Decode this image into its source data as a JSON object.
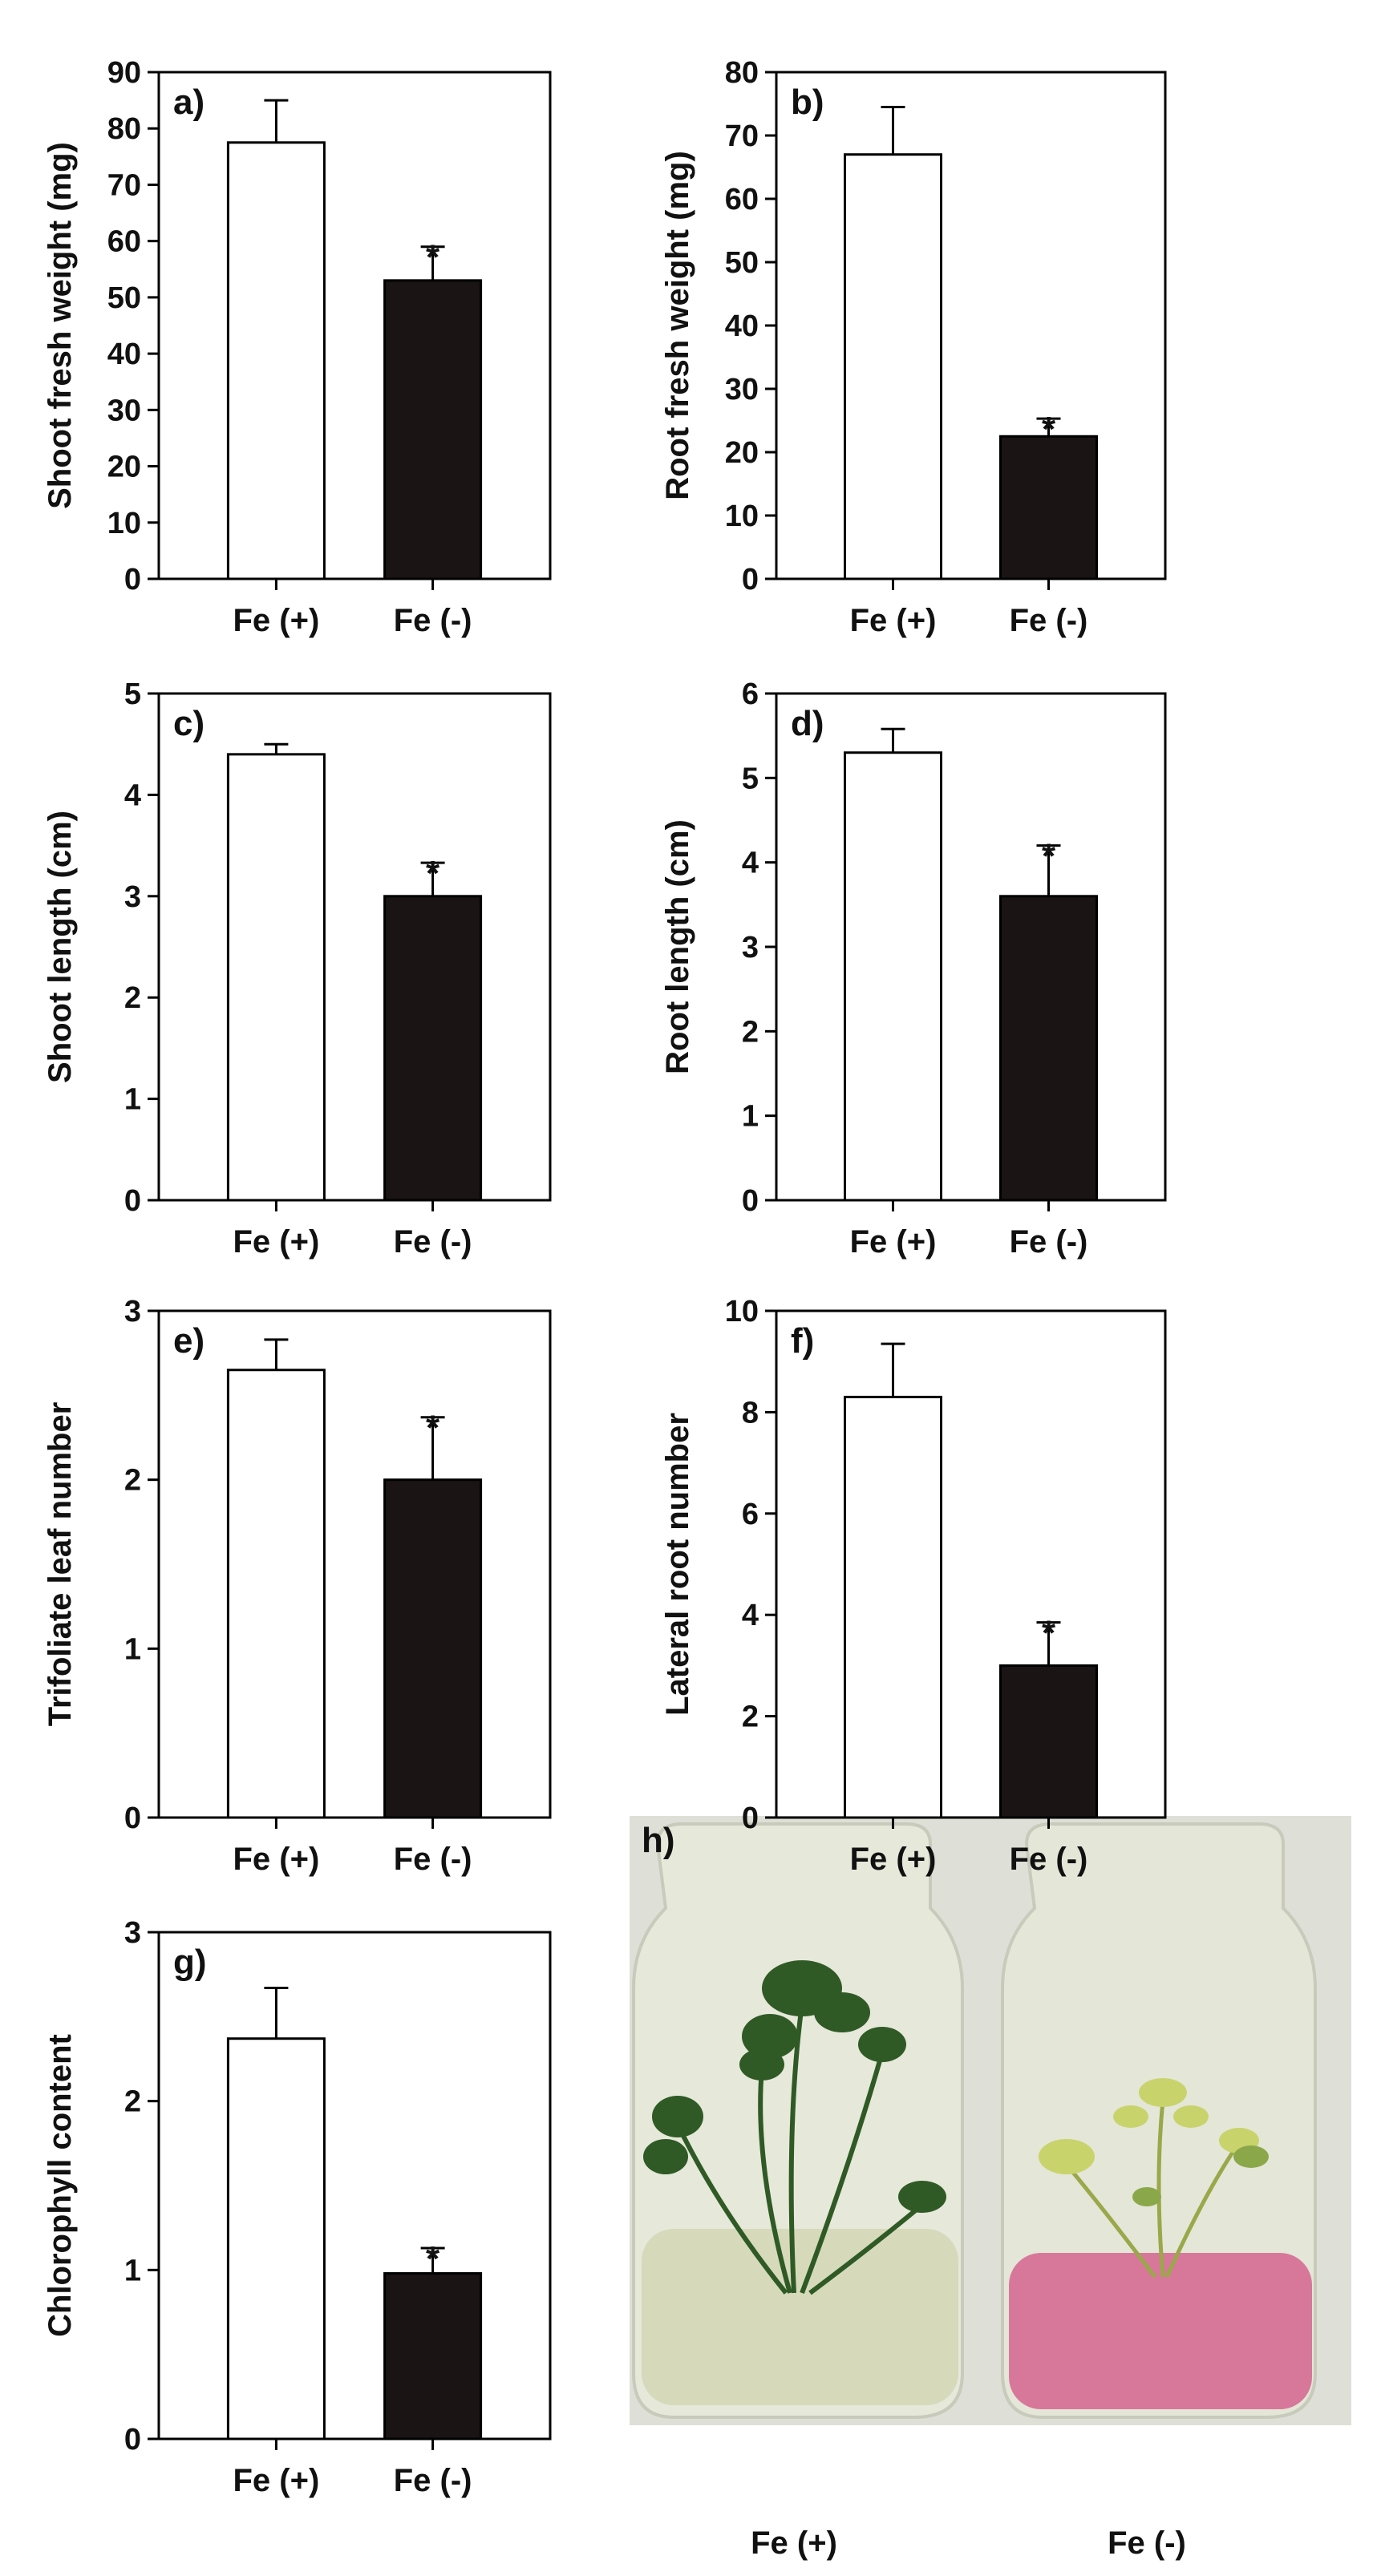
{
  "chart_data": [
    {
      "id": "a",
      "type": "bar",
      "panel_label": "a)",
      "ylabel": "Shoot fresh weight (mg)",
      "ylim": [
        0,
        90
      ],
      "ticks": [
        0,
        10,
        20,
        30,
        40,
        50,
        60,
        70,
        80,
        90
      ],
      "tick_labels": [
        "0",
        "10",
        "20",
        "30",
        "40",
        "50",
        "60",
        "70",
        "80",
        "90"
      ],
      "categories": [
        "Fe (+)",
        "Fe (-)"
      ],
      "values": [
        77.5,
        53
      ],
      "errors": [
        7.5,
        6
      ],
      "significance": [
        "",
        "*"
      ],
      "fill_colors": [
        "#ffffff",
        "#1a1414"
      ]
    },
    {
      "id": "b",
      "type": "bar",
      "panel_label": "b)",
      "ylabel": "Root fresh weight (mg)",
      "ylim": [
        0,
        80
      ],
      "ticks": [
        0,
        10,
        20,
        30,
        40,
        50,
        60,
        70,
        80
      ],
      "tick_labels": [
        "0",
        "10",
        "20",
        "30",
        "40",
        "50",
        "60",
        "70",
        "80"
      ],
      "categories": [
        "Fe (+)",
        "Fe (-)"
      ],
      "values": [
        67,
        22.5
      ],
      "errors": [
        7.5,
        2.8
      ],
      "significance": [
        "",
        "*"
      ],
      "fill_colors": [
        "#ffffff",
        "#1a1414"
      ]
    },
    {
      "id": "c",
      "type": "bar",
      "panel_label": "c)",
      "ylabel": "Shoot length (cm)",
      "ylim": [
        0,
        5
      ],
      "ticks": [
        0,
        1,
        2,
        3,
        4,
        5
      ],
      "tick_labels": [
        "0",
        "1",
        "2",
        "3",
        "4",
        "5"
      ],
      "categories": [
        "Fe (+)",
        "Fe (-)"
      ],
      "values": [
        4.4,
        3.0
      ],
      "errors": [
        0.1,
        0.33
      ],
      "significance": [
        "",
        "*"
      ],
      "fill_colors": [
        "#ffffff",
        "#1a1414"
      ]
    },
    {
      "id": "d",
      "type": "bar",
      "panel_label": "d)",
      "ylabel": "Root length (cm)",
      "ylim": [
        0,
        6
      ],
      "ticks": [
        0,
        1,
        2,
        3,
        4,
        5,
        6
      ],
      "tick_labels": [
        "0",
        "1",
        "2",
        "3",
        "4",
        "5",
        "6"
      ],
      "categories": [
        "Fe (+)",
        "Fe (-)"
      ],
      "values": [
        5.3,
        3.6
      ],
      "errors": [
        0.28,
        0.6
      ],
      "significance": [
        "",
        "*"
      ],
      "fill_colors": [
        "#ffffff",
        "#1a1414"
      ]
    },
    {
      "id": "e",
      "type": "bar",
      "panel_label": "e)",
      "ylabel": "Trifoliate leaf number",
      "ylim": [
        0,
        3
      ],
      "ticks": [
        0,
        1,
        2,
        3
      ],
      "tick_labels": [
        "0",
        "1",
        "2",
        "3"
      ],
      "categories": [
        "Fe (+)",
        "Fe (-)"
      ],
      "values": [
        2.65,
        2.0
      ],
      "errors": [
        0.18,
        0.37
      ],
      "significance": [
        "",
        "*"
      ],
      "fill_colors": [
        "#ffffff",
        "#1a1414"
      ]
    },
    {
      "id": "f",
      "type": "bar",
      "panel_label": "f)",
      "ylabel": "Lateral root number",
      "ylim": [
        0,
        10
      ],
      "ticks": [
        0,
        2,
        4,
        6,
        8,
        10
      ],
      "tick_labels": [
        "0",
        "2",
        "4",
        "6",
        "8",
        "10"
      ],
      "categories": [
        "Fe (+)",
        "Fe (-)"
      ],
      "values": [
        8.3,
        3.0
      ],
      "errors": [
        1.05,
        0.85
      ],
      "significance": [
        "",
        "*"
      ],
      "fill_colors": [
        "#ffffff",
        "#1a1414"
      ]
    },
    {
      "id": "g",
      "type": "bar",
      "panel_label": "g)",
      "ylabel": "Chlorophyll content",
      "ylim": [
        0,
        3
      ],
      "ticks": [
        0,
        1,
        2,
        3
      ],
      "tick_labels": [
        "0",
        "1",
        "2",
        "3"
      ],
      "categories": [
        "Fe (+)",
        "Fe (-)"
      ],
      "values": [
        2.37,
        0.98
      ],
      "errors": [
        0.3,
        0.15
      ],
      "significance": [
        "",
        "*"
      ],
      "fill_colors": [
        "#ffffff",
        "#1a1414"
      ]
    }
  ],
  "photo": {
    "panel_label": "h)",
    "left_label": "Fe (+)",
    "right_label": "Fe (-)",
    "colors": {
      "background": "#dcdcd2",
      "glass": "#e3e6d8",
      "agar_left": "#d9dcc2",
      "agar_right": "#d7789a",
      "leaf_dark": "#2f5a25",
      "leaf_yellow": "#c9d36b",
      "leaf_light": "#8aa84a"
    }
  }
}
